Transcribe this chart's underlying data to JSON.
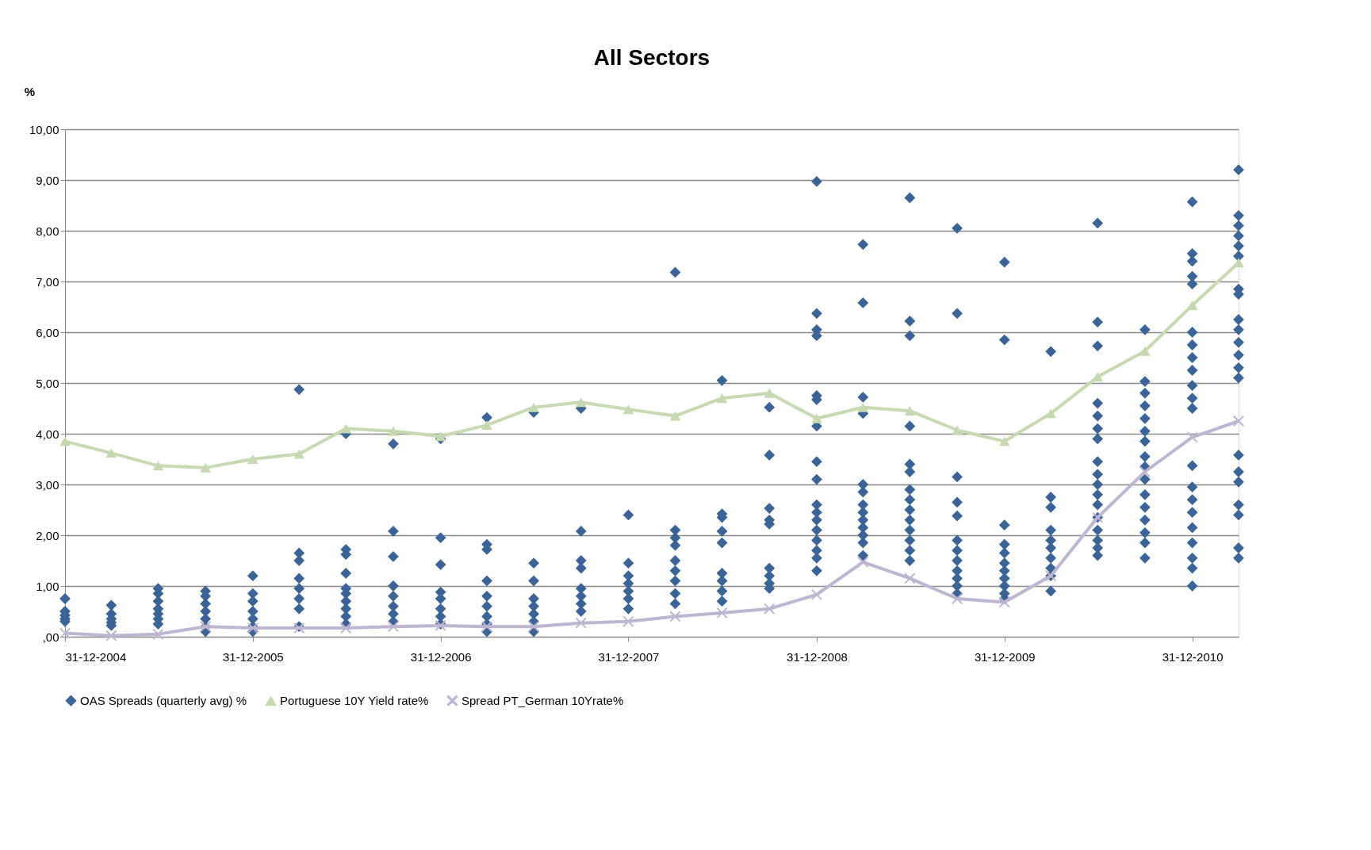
{
  "chart_data": {
    "type": "scatter",
    "title": "All Sectors",
    "ylabel": "%",
    "xlim": [
      "2004-12-31",
      "2011-03-31"
    ],
    "xticks": [
      {
        "value": "2004-12-31",
        "label": "31-12-2004"
      },
      {
        "value": "2005-12-31",
        "label": "31-12-2005"
      },
      {
        "value": "2006-12-31",
        "label": "31-12-2006"
      },
      {
        "value": "2007-12-31",
        "label": "31-12-2007"
      },
      {
        "value": "2008-12-31",
        "label": "31-12-2008"
      },
      {
        "value": "2009-12-31",
        "label": "31-12-2009"
      },
      {
        "value": "2010-12-31",
        "label": "31-12-2010"
      }
    ],
    "ylim": [
      0,
      10
    ],
    "yticks": [
      {
        "value": 0,
        "label": ",00"
      },
      {
        "value": 1,
        "label": "1,00"
      },
      {
        "value": 2,
        "label": "2,00"
      },
      {
        "value": 3,
        "label": "3,00"
      },
      {
        "value": 4,
        "label": "4,00"
      },
      {
        "value": 5,
        "label": "5,00"
      },
      {
        "value": 6,
        "label": "6,00"
      },
      {
        "value": 7,
        "label": "7,00"
      },
      {
        "value": 8,
        "label": "8,00"
      },
      {
        "value": 9,
        "label": "9,00"
      },
      {
        "value": 10,
        "label": "10,00"
      }
    ],
    "grid": "y",
    "legend": "bottom",
    "series": [
      {
        "name": "OAS Spreads (quarterly avg) %",
        "marker": "diamond",
        "color": "#3a6496",
        "x": [
          "2004-12-31",
          "2004-12-31",
          "2004-12-31",
          "2004-12-31",
          "2004-12-31",
          "2005-03-31",
          "2005-03-31",
          "2005-03-31",
          "2005-03-31",
          "2005-03-31",
          "2005-06-30",
          "2005-06-30",
          "2005-06-30",
          "2005-06-30",
          "2005-06-30",
          "2005-06-30",
          "2005-06-30",
          "2005-09-30",
          "2005-09-30",
          "2005-09-30",
          "2005-09-30",
          "2005-09-30",
          "2005-09-30",
          "2005-09-30",
          "2005-12-31",
          "2005-12-31",
          "2005-12-31",
          "2005-12-31",
          "2005-12-31",
          "2005-12-31",
          "2005-12-31",
          "2006-03-31",
          "2006-03-31",
          "2006-03-31",
          "2006-03-31",
          "2006-03-31",
          "2006-03-31",
          "2006-03-31",
          "2006-03-31",
          "2006-06-30",
          "2006-06-30",
          "2006-06-30",
          "2006-06-30",
          "2006-06-30",
          "2006-06-30",
          "2006-06-30",
          "2006-06-30",
          "2006-06-30",
          "2006-06-30",
          "2006-09-30",
          "2006-09-30",
          "2006-09-30",
          "2006-09-30",
          "2006-09-30",
          "2006-09-30",
          "2006-09-30",
          "2006-09-30",
          "2006-12-31",
          "2006-12-31",
          "2006-12-31",
          "2006-12-31",
          "2006-12-31",
          "2006-12-31",
          "2006-12-31",
          "2006-12-31",
          "2007-03-31",
          "2007-03-31",
          "2007-03-31",
          "2007-03-31",
          "2007-03-31",
          "2007-03-31",
          "2007-03-31",
          "2007-03-31",
          "2007-03-31",
          "2007-06-30",
          "2007-06-30",
          "2007-06-30",
          "2007-06-30",
          "2007-06-30",
          "2007-06-30",
          "2007-06-30",
          "2007-06-30",
          "2007-09-30",
          "2007-09-30",
          "2007-09-30",
          "2007-09-30",
          "2007-09-30",
          "2007-09-30",
          "2007-09-30",
          "2007-09-30",
          "2007-12-31",
          "2007-12-31",
          "2007-12-31",
          "2007-12-31",
          "2007-12-31",
          "2007-12-31",
          "2007-12-31",
          "2008-03-31",
          "2008-03-31",
          "2008-03-31",
          "2008-03-31",
          "2008-03-31",
          "2008-03-31",
          "2008-03-31",
          "2008-03-31",
          "2008-03-31",
          "2008-06-30",
          "2008-06-30",
          "2008-06-30",
          "2008-06-30",
          "2008-06-30",
          "2008-06-30",
          "2008-06-30",
          "2008-06-30",
          "2008-06-30",
          "2008-09-30",
          "2008-09-30",
          "2008-09-30",
          "2008-09-30",
          "2008-09-30",
          "2008-09-30",
          "2008-09-30",
          "2008-09-30",
          "2008-09-30",
          "2008-12-31",
          "2008-12-31",
          "2008-12-31",
          "2008-12-31",
          "2008-12-31",
          "2008-12-31",
          "2008-12-31",
          "2008-12-31",
          "2008-12-31",
          "2008-12-31",
          "2008-12-31",
          "2008-12-31",
          "2008-12-31",
          "2008-12-31",
          "2008-12-31",
          "2008-12-31",
          "2008-12-31",
          "2009-03-31",
          "2009-03-31",
          "2009-03-31",
          "2009-03-31",
          "2009-03-31",
          "2009-03-31",
          "2009-03-31",
          "2009-03-31",
          "2009-03-31",
          "2009-03-31",
          "2009-03-31",
          "2009-03-31",
          "2009-03-31",
          "2009-06-30",
          "2009-06-30",
          "2009-06-30",
          "2009-06-30",
          "2009-06-30",
          "2009-06-30",
          "2009-06-30",
          "2009-06-30",
          "2009-06-30",
          "2009-06-30",
          "2009-06-30",
          "2009-06-30",
          "2009-06-30",
          "2009-06-30",
          "2009-09-30",
          "2009-09-30",
          "2009-09-30",
          "2009-09-30",
          "2009-09-30",
          "2009-09-30",
          "2009-09-30",
          "2009-09-30",
          "2009-09-30",
          "2009-09-30",
          "2009-09-30",
          "2009-09-30",
          "2009-12-31",
          "2009-12-31",
          "2009-12-31",
          "2009-12-31",
          "2009-12-31",
          "2009-12-31",
          "2009-12-31",
          "2009-12-31",
          "2009-12-31",
          "2009-12-31",
          "2009-12-31",
          "2010-03-31",
          "2010-03-31",
          "2010-03-31",
          "2010-03-31",
          "2010-03-31",
          "2010-03-31",
          "2010-03-31",
          "2010-03-31",
          "2010-03-31",
          "2010-03-31",
          "2010-06-30",
          "2010-06-30",
          "2010-06-30",
          "2010-06-30",
          "2010-06-30",
          "2010-06-30",
          "2010-06-30",
          "2010-06-30",
          "2010-06-30",
          "2010-06-30",
          "2010-06-30",
          "2010-06-30",
          "2010-06-30",
          "2010-06-30",
          "2010-06-30",
          "2010-06-30",
          "2010-06-30",
          "2010-09-30",
          "2010-09-30",
          "2010-09-30",
          "2010-09-30",
          "2010-09-30",
          "2010-09-30",
          "2010-09-30",
          "2010-09-30",
          "2010-09-30",
          "2010-09-30",
          "2010-09-30",
          "2010-09-30",
          "2010-09-30",
          "2010-09-30",
          "2010-09-30",
          "2010-09-30",
          "2010-12-31",
          "2010-12-31",
          "2010-12-31",
          "2010-12-31",
          "2010-12-31",
          "2010-12-31",
          "2010-12-31",
          "2010-12-31",
          "2010-12-31",
          "2010-12-31",
          "2010-12-31",
          "2010-12-31",
          "2010-12-31",
          "2010-12-31",
          "2010-12-31",
          "2010-12-31",
          "2010-12-31",
          "2010-12-31",
          "2010-12-31",
          "2010-12-31",
          "2010-12-31",
          "2011-03-31",
          "2011-03-31",
          "2011-03-31",
          "2011-03-31",
          "2011-03-31",
          "2011-03-31",
          "2011-03-31",
          "2011-03-31",
          "2011-03-31",
          "2011-03-31",
          "2011-03-31",
          "2011-03-31",
          "2011-03-31",
          "2011-03-31",
          "2011-03-31",
          "2011-03-31",
          "2011-03-31",
          "2011-03-31",
          "2011-03-31",
          "2011-03-31",
          "2011-03-31"
        ],
        "values": [
          0.75,
          0.5,
          0.42,
          0.35,
          0.3,
          0.62,
          0.45,
          0.35,
          0.28,
          0.22,
          0.95,
          0.85,
          0.7,
          0.55,
          0.45,
          0.35,
          0.25,
          0.9,
          0.8,
          0.65,
          0.5,
          0.35,
          0.2,
          0.1,
          1.2,
          0.85,
          0.7,
          0.5,
          0.35,
          0.2,
          0.1,
          4.87,
          1.65,
          1.5,
          1.15,
          0.95,
          0.75,
          0.55,
          0.2,
          4.0,
          1.72,
          1.62,
          1.25,
          0.95,
          0.85,
          0.7,
          0.55,
          0.4,
          0.25,
          3.8,
          2.08,
          1.58,
          1.0,
          0.8,
          0.6,
          0.45,
          0.3,
          3.9,
          1.95,
          1.42,
          0.88,
          0.75,
          0.55,
          0.4,
          0.25,
          4.32,
          1.82,
          1.72,
          1.1,
          0.8,
          0.6,
          0.4,
          0.25,
          0.1,
          4.42,
          1.45,
          1.1,
          0.75,
          0.6,
          0.45,
          0.3,
          0.1,
          4.5,
          2.08,
          1.5,
          1.35,
          0.95,
          0.8,
          0.65,
          0.5,
          2.4,
          1.45,
          1.2,
          1.05,
          0.9,
          0.75,
          0.55,
          7.18,
          2.1,
          1.95,
          1.8,
          1.5,
          1.3,
          1.1,
          0.85,
          0.65,
          5.05,
          2.42,
          2.35,
          2.08,
          1.85,
          1.25,
          1.1,
          0.9,
          0.7,
          4.52,
          3.58,
          2.53,
          2.3,
          2.22,
          1.35,
          1.2,
          1.05,
          0.95,
          8.97,
          6.37,
          6.05,
          5.93,
          4.75,
          4.67,
          4.15,
          3.45,
          3.1,
          2.6,
          2.45,
          2.3,
          2.1,
          1.9,
          1.7,
          1.55,
          1.3,
          7.73,
          6.58,
          4.72,
          4.4,
          3.0,
          2.85,
          2.6,
          2.45,
          2.3,
          2.15,
          2.0,
          1.85,
          1.6,
          8.65,
          6.22,
          5.93,
          4.15,
          3.4,
          3.25,
          2.9,
          2.7,
          2.5,
          2.3,
          2.1,
          1.9,
          1.7,
          1.5,
          8.05,
          6.37,
          3.15,
          2.65,
          2.38,
          1.9,
          1.7,
          1.5,
          1.3,
          1.15,
          1.0,
          0.85,
          7.38,
          5.85,
          2.2,
          1.82,
          1.65,
          1.45,
          1.3,
          1.15,
          1.0,
          0.85,
          0.75,
          5.62,
          2.75,
          2.55,
          2.1,
          1.9,
          1.75,
          1.55,
          1.35,
          1.2,
          0.9,
          8.15,
          6.2,
          5.73,
          4.6,
          4.35,
          4.1,
          3.9,
          3.45,
          3.2,
          3.0,
          2.8,
          2.6,
          2.35,
          2.1,
          1.9,
          1.75,
          1.6,
          6.05,
          5.03,
          4.8,
          4.55,
          4.3,
          4.05,
          3.85,
          3.55,
          3.35,
          3.1,
          2.8,
          2.55,
          2.3,
          2.05,
          1.85,
          1.55,
          8.57,
          7.55,
          7.4,
          7.1,
          6.95,
          6.0,
          5.75,
          5.5,
          5.25,
          4.95,
          4.7,
          4.5,
          3.37,
          2.95,
          2.7,
          2.45,
          2.15,
          1.85,
          1.55,
          1.35,
          1.0,
          9.2,
          8.3,
          8.1,
          7.9,
          7.7,
          7.5,
          6.85,
          6.75,
          6.25,
          6.05,
          5.8,
          5.55,
          5.3,
          5.1,
          3.58,
          3.25,
          3.05,
          2.6,
          2.4,
          1.75,
          1.55
        ]
      },
      {
        "name": "Portuguese 10Y Yield rate%",
        "type": "line",
        "marker": "triangle",
        "line_style": "solid",
        "color": "#c6d9b0",
        "x": [
          "2004-12-31",
          "2005-03-31",
          "2005-06-30",
          "2005-09-30",
          "2005-12-31",
          "2006-03-31",
          "2006-06-30",
          "2006-09-30",
          "2006-12-31",
          "2007-03-31",
          "2007-06-30",
          "2007-09-30",
          "2007-12-31",
          "2008-03-31",
          "2008-06-30",
          "2008-09-30",
          "2008-12-31",
          "2009-03-31",
          "2009-06-30",
          "2009-09-30",
          "2009-12-31",
          "2010-03-31",
          "2010-06-30",
          "2010-09-30",
          "2010-12-31",
          "2011-03-31"
        ],
        "values": [
          3.85,
          3.62,
          3.37,
          3.33,
          3.5,
          3.6,
          4.1,
          4.05,
          3.95,
          4.17,
          4.52,
          4.62,
          4.48,
          4.35,
          4.7,
          4.8,
          4.3,
          4.52,
          4.45,
          4.07,
          3.85,
          4.4,
          5.12,
          5.63,
          6.53,
          7.37
        ]
      },
      {
        "name": "Spread PT_German  10Yrate%",
        "type": "line",
        "marker": "cross",
        "line_style": "solid",
        "color": "#bdb5d1",
        "x": [
          "2004-12-31",
          "2005-03-31",
          "2005-06-30",
          "2005-09-30",
          "2005-12-31",
          "2006-03-31",
          "2006-06-30",
          "2006-09-30",
          "2006-12-31",
          "2007-03-31",
          "2007-06-30",
          "2007-09-30",
          "2007-12-31",
          "2008-03-31",
          "2008-06-30",
          "2008-09-30",
          "2008-12-31",
          "2009-03-31",
          "2009-06-30",
          "2009-09-30",
          "2009-12-31",
          "2010-03-31",
          "2010-06-30",
          "2010-09-30",
          "2010-12-31",
          "2011-03-31"
        ],
        "values": [
          0.07,
          0.02,
          0.05,
          0.2,
          0.17,
          0.17,
          0.17,
          0.2,
          0.22,
          0.2,
          0.2,
          0.27,
          0.3,
          0.4,
          0.47,
          0.55,
          0.83,
          1.47,
          1.15,
          0.75,
          0.68,
          1.2,
          2.35,
          3.25,
          3.93,
          4.25
        ]
      }
    ]
  }
}
